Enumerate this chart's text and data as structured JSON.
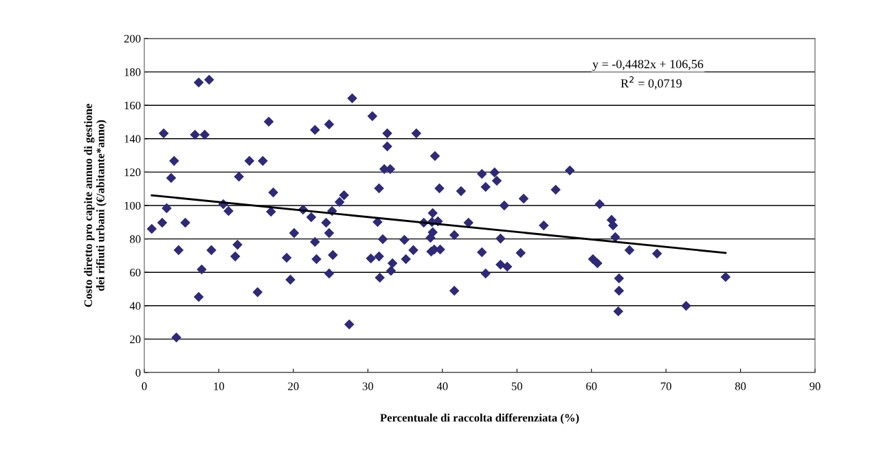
{
  "chart_data": {
    "type": "scatter",
    "xlabel": "Percentuale di raccolta differenziata (%)",
    "ylabel": "Costo diretto pro capite annuo di gestione\ndei rifiuti urbani (€/abitante*anno)",
    "xlim": [
      0,
      90
    ],
    "xticks": [
      0,
      10,
      20,
      30,
      40,
      50,
      60,
      70,
      80,
      90
    ],
    "ylim": [
      0,
      200
    ],
    "yticks": [
      0,
      20,
      40,
      60,
      80,
      100,
      120,
      140,
      160,
      180,
      200
    ],
    "grid": "y",
    "legend": false,
    "annotations": [
      "y = -0,4482x + 106,56",
      "R$^{2}$ = 0,0719"
    ],
    "series": [
      {
        "color": "#2e2a78",
        "marker": "diamond",
        "x": [
          1.0,
          2.4,
          2.6,
          3.0,
          3.6,
          4.0,
          4.3,
          4.6,
          5.5,
          6.8,
          7.3,
          7.3,
          7.7,
          8.1,
          8.7,
          9.0,
          10.6,
          11.3,
          12.2,
          12.5,
          12.7,
          14.1,
          15.2,
          15.9,
          16.7,
          17.0,
          17.3,
          19.1,
          19.6,
          20.1,
          21.3,
          22.4,
          22.9,
          22.9,
          23.1,
          24.4,
          24.8,
          24.8,
          24.8,
          25.2,
          25.3,
          26.2,
          26.8,
          27.5,
          27.9,
          30.4,
          30.6,
          31.3,
          31.5,
          31.5,
          31.6,
          32.0,
          32.2,
          32.6,
          32.6,
          33.0,
          33.1,
          33.3,
          34.9,
          35.1,
          36.1,
          36.5,
          37.5,
          38.4,
          38.5,
          38.6,
          38.7,
          38.7,
          38.9,
          39.0,
          39.4,
          39.6,
          39.7,
          41.6,
          41.6,
          42.5,
          43.5,
          45.3,
          45.3,
          45.8,
          45.8,
          47.0,
          47.3,
          47.8,
          47.8,
          48.3,
          48.7,
          50.5,
          50.9,
          53.6,
          55.2,
          57.1,
          60.2,
          60.8,
          61.1,
          62.7,
          62.9,
          63.2,
          63.6,
          63.7,
          63.7,
          65.1,
          68.8,
          72.7,
          78.0
        ],
        "values": [
          86.0,
          89.7,
          143.2,
          98.4,
          116.5,
          126.7,
          21.0,
          73.3,
          89.7,
          142.4,
          173.7,
          45.3,
          61.7,
          142.4,
          175.3,
          73.3,
          100.8,
          96.7,
          69.5,
          76.5,
          117.3,
          126.7,
          48.1,
          126.7,
          150.2,
          96.3,
          107.8,
          68.7,
          55.6,
          83.5,
          97.5,
          93.0,
          145.3,
          78.2,
          67.9,
          89.7,
          148.6,
          83.5,
          59.3,
          96.7,
          70.4,
          102.1,
          106.2,
          28.8,
          164.2,
          68.3,
          153.5,
          90.1,
          69.5,
          110.3,
          56.8,
          79.8,
          121.8,
          143.2,
          135.4,
          121.8,
          60.9,
          65.4,
          79.4,
          67.9,
          73.3,
          143.2,
          89.7,
          80.7,
          72.4,
          90.1,
          84.0,
          95.5,
          73.7,
          129.6,
          90.5,
          110.3,
          73.7,
          82.3,
          49.0,
          108.6,
          89.7,
          72.0,
          118.9,
          111.1,
          59.3,
          119.8,
          114.8,
          80.2,
          64.6,
          100.0,
          63.4,
          71.6,
          104.1,
          88.1,
          109.5,
          121.0,
          67.9,
          65.4,
          100.8,
          91.4,
          88.1,
          81.1,
          36.6,
          56.4,
          49.0,
          73.3,
          71.2,
          39.9,
          57.2
        ]
      },
      {
        "type": "line",
        "color": "#000000",
        "marker": "none",
        "x": [
          1.0,
          78.0
        ],
        "values": [
          106.1,
          71.6
        ]
      }
    ]
  }
}
